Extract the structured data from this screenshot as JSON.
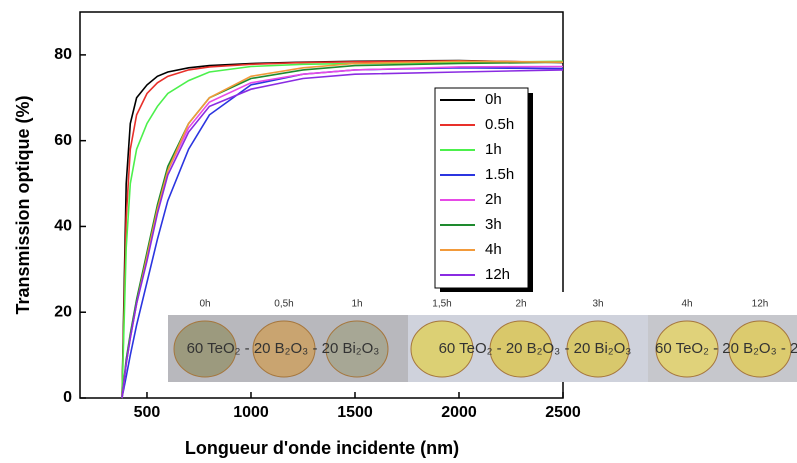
{
  "chart_data": {
    "type": "line",
    "x_label": "Longueur d'onde incidente (nm)",
    "y_label": "Transmission optique (%)",
    "x": [
      380,
      400,
      420,
      450,
      500,
      550,
      600,
      700,
      800,
      1000,
      1250,
      1500,
      2000,
      2500
    ],
    "xlim": [
      178,
      2500
    ],
    "xticks": [
      500,
      1000,
      1500,
      2000,
      2500
    ],
    "ylim": [
      0,
      90
    ],
    "yticks": [
      0,
      20,
      40,
      60,
      80
    ],
    "legend": "upper right",
    "series": [
      {
        "name": "0h",
        "color": "#000000",
        "values": [
          0,
          50,
          64,
          70,
          73,
          75,
          76,
          77,
          77.5,
          78,
          78.3,
          78.5,
          78.7,
          78.2
        ]
      },
      {
        "name": "0.5h",
        "color": "#e8302a",
        "values": [
          0,
          42,
          58,
          66,
          71,
          73.5,
          75,
          76.5,
          77.2,
          77.8,
          78.2,
          78.4,
          78.6,
          78.3
        ]
      },
      {
        "name": "1h",
        "color": "#4cf04c",
        "values": [
          0,
          35,
          50,
          58,
          64,
          68,
          71,
          74,
          76,
          77.3,
          77.8,
          78,
          78.2,
          78.5
        ]
      },
      {
        "name": "1.5h",
        "color": "#2b35e0",
        "values": [
          0,
          5,
          10,
          17,
          27,
          37,
          46,
          58,
          66,
          73,
          75.5,
          76.5,
          77,
          76.8
        ]
      },
      {
        "name": "2h",
        "color": "#e64ae6",
        "values": [
          0,
          8,
          14,
          22,
          33,
          44,
          53,
          63,
          69,
          73.5,
          75.5,
          76.5,
          77.2,
          77.3
        ]
      },
      {
        "name": "3h",
        "color": "#1e8a2e",
        "values": [
          0,
          9,
          15,
          23,
          34,
          45,
          54,
          64,
          70,
          74.5,
          76.5,
          77.5,
          78,
          78.3
        ]
      },
      {
        "name": "4h",
        "color": "#f29a3a",
        "values": [
          0,
          8,
          14,
          22,
          33,
          44,
          53,
          64,
          70,
          75,
          77,
          78,
          78.5,
          78.3
        ]
      },
      {
        "name": "12h",
        "color": "#8a2be2",
        "values": [
          0,
          8,
          14,
          22,
          32,
          43,
          52,
          62,
          68,
          72,
          74.5,
          75.5,
          76,
          76.5
        ]
      }
    ],
    "inset": {
      "labels": [
        "0h",
        "0,5h",
        "1h",
        "1,5h",
        "2h",
        "3h",
        "4h",
        "12h"
      ],
      "text": "60 TeO₂ - 20 B₂O₃ - 20 Bi₂O₃"
    }
  }
}
